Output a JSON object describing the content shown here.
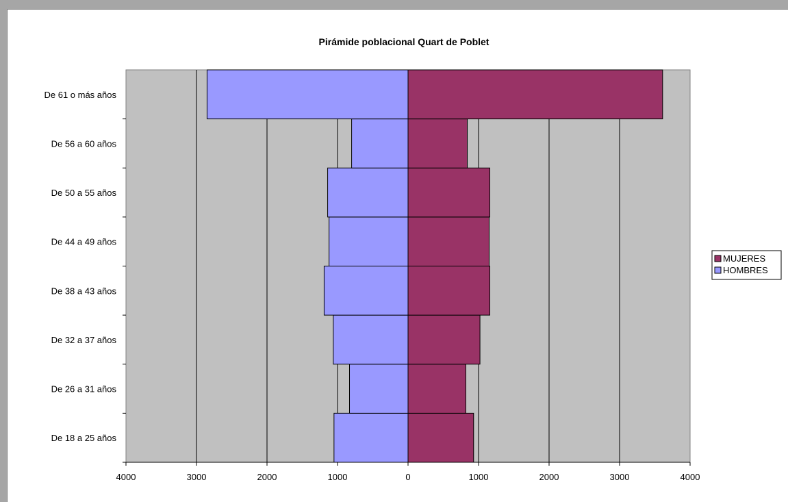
{
  "chart_data": {
    "type": "bar",
    "orientation": "horizontal",
    "title": "Pirámide poblacional Quart de Poblet",
    "categories": [
      "De 18 a 25 años",
      "De 26 a 31 años",
      "De 32 a 37 años",
      "De 38 a 43 años",
      "De 44 a 49 años",
      "De 50 a 55 años",
      "De 56 a 60 años",
      "De 61 o más años"
    ],
    "series": [
      {
        "name": "MUJERES",
        "color": "#993366",
        "side": "right",
        "values": [
          930,
          820,
          1020,
          1160,
          1150,
          1160,
          840,
          3610
        ]
      },
      {
        "name": "HOMBRES",
        "color": "#9999ff",
        "side": "left",
        "values": [
          1050,
          830,
          1060,
          1190,
          1120,
          1140,
          800,
          2850
        ]
      }
    ],
    "xlim": [
      -4000,
      4000
    ],
    "x_ticks": [
      {
        "value": -4000,
        "label": "4000"
      },
      {
        "value": -3000,
        "label": "3000"
      },
      {
        "value": -2000,
        "label": "2000"
      },
      {
        "value": -1000,
        "label": "1000"
      },
      {
        "value": 0,
        "label": "0"
      },
      {
        "value": 1000,
        "label": "1000"
      },
      {
        "value": 2000,
        "label": "2000"
      },
      {
        "value": 3000,
        "label": "3000"
      },
      {
        "value": 4000,
        "label": "4000"
      }
    ],
    "grid": true,
    "plot_background": "#c0c0c0",
    "legend": {
      "position": "right",
      "entries": [
        "MUJERES",
        "HOMBRES"
      ]
    }
  }
}
